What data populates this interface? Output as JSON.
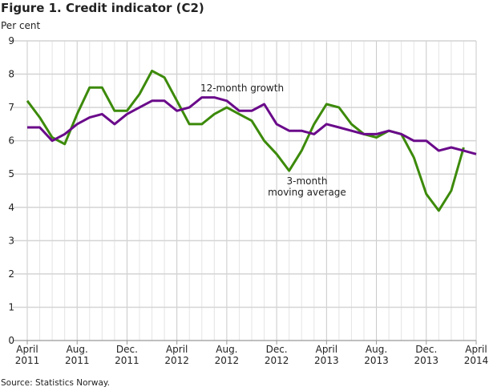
{
  "chart_data": {
    "type": "line",
    "title": "Figure 1. Credit indicator (C2)",
    "ylabel": "Per cent",
    "xlabel": "",
    "source": "Source: Statistics Norway.",
    "ylim": [
      0,
      9
    ],
    "yticks": [
      "0",
      "1",
      "2",
      "3",
      "4",
      "5",
      "6",
      "7",
      "8",
      "9"
    ],
    "xticks": [
      {
        "idx": 0,
        "l1": "April",
        "l2": "2011"
      },
      {
        "idx": 4,
        "l1": "Aug.",
        "l2": "2011"
      },
      {
        "idx": 8,
        "l1": "Dec.",
        "l2": "2011"
      },
      {
        "idx": 12,
        "l1": "April",
        "l2": "2012"
      },
      {
        "idx": 16,
        "l1": "Aug.",
        "l2": "2012"
      },
      {
        "idx": 20,
        "l1": "Dec.",
        "l2": "2012"
      },
      {
        "idx": 24,
        "l1": "April",
        "l2": "2013"
      },
      {
        "idx": 28,
        "l1": "Aug.",
        "l2": "2013"
      },
      {
        "idx": 32,
        "l1": "Dec.",
        "l2": "2013"
      },
      {
        "idx": 36,
        "l1": "April",
        "l2": "2014"
      }
    ],
    "n_months": 37,
    "grid": true,
    "series": [
      {
        "name": "12-month growth",
        "color": "#6a0a8a",
        "values": [
          6.4,
          6.4,
          6.0,
          6.2,
          6.5,
          6.7,
          6.8,
          6.5,
          6.8,
          7.0,
          7.2,
          7.2,
          6.9,
          7.0,
          7.3,
          7.3,
          7.2,
          6.9,
          6.9,
          7.1,
          6.5,
          6.3,
          6.3,
          6.2,
          6.5,
          6.4,
          6.3,
          6.2,
          6.2,
          6.3,
          6.2,
          6.0,
          6.0,
          5.7,
          5.8,
          5.7,
          5.6
        ]
      },
      {
        "name": "3-month moving average",
        "color": "#3c8a0a",
        "values": [
          7.2,
          6.7,
          6.1,
          5.9,
          6.8,
          7.6,
          7.6,
          6.9,
          6.9,
          7.4,
          8.1,
          7.9,
          7.2,
          6.5,
          6.5,
          6.8,
          7.0,
          6.8,
          6.6,
          6.0,
          5.6,
          5.1,
          5.7,
          6.5,
          7.1,
          7.0,
          6.5,
          6.2,
          6.1,
          6.3,
          6.2,
          5.5,
          4.4,
          3.9,
          4.5,
          5.8,
          null
        ]
      }
    ],
    "annotations": [
      {
        "text": "12-month growth",
        "series": 0
      },
      {
        "line1": "3-month",
        "line2": "moving average",
        "series": 1
      }
    ]
  }
}
